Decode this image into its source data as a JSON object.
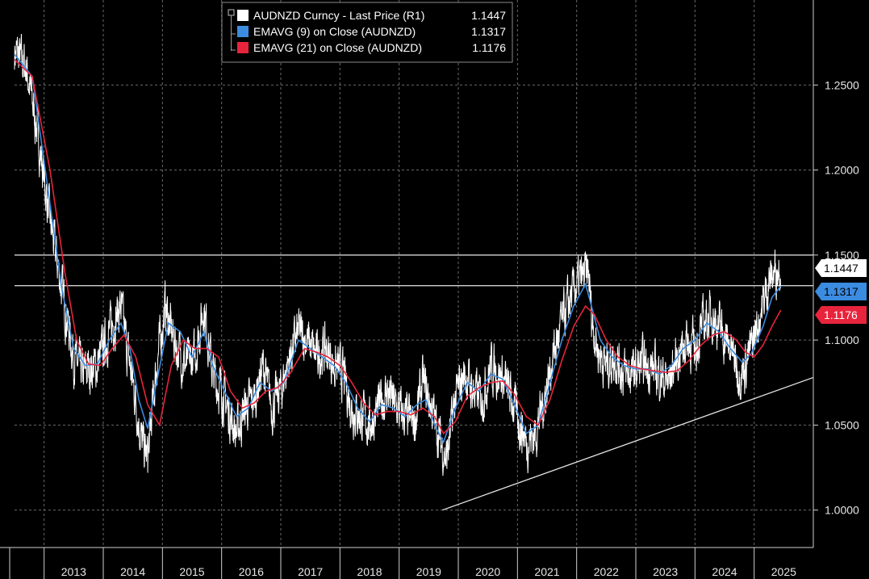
{
  "chart_data": {
    "type": "line",
    "legend": {
      "placement": "top-left",
      "entries": [
        {
          "label": "AUDNZD Curncy - Last Price (R1)",
          "value": "1.1447",
          "color": "#ffffff"
        },
        {
          "label": "EMAVG (9)  on Close (AUDNZD)",
          "value": "1.1317",
          "color": "#3b8be0"
        },
        {
          "label": "EMAVG (21)  on Close (AUDNZD)",
          "value": "1.1176",
          "color": "#e8243c"
        }
      ]
    },
    "x_labels": [
      "2013",
      "2014",
      "2015",
      "2016",
      "2017",
      "2018",
      "2019",
      "2020",
      "2021",
      "2022",
      "2023",
      "2024",
      "2025"
    ],
    "xlim": [
      2012.5,
      2026.0
    ],
    "y_ticks": [
      "1.0000",
      "1.0500",
      "1.1000",
      "1.1500",
      "1.2000",
      "1.2500"
    ],
    "y_tick_values": [
      1.0,
      1.05,
      1.1,
      1.15,
      1.2,
      1.25
    ],
    "ylim": [
      0.978,
      1.3
    ],
    "axis_side": "right",
    "grid": true,
    "background": "#000000",
    "badges": [
      {
        "text": "1.1447",
        "value": 1.1447,
        "bg": "#ffffff",
        "fg": "#000000"
      },
      {
        "text": "1.1317",
        "value": 1.1317,
        "bg": "#3b8be0",
        "fg": "#000000"
      },
      {
        "text": "1.1176",
        "value": 1.1176,
        "bg": "#e8243c",
        "fg": "#ffffff"
      }
    ],
    "horizontal_lines": [
      1.15,
      1.132
    ],
    "trendline": {
      "x": [
        2019.73,
        2026.0
      ],
      "y": [
        1.0,
        1.078
      ]
    },
    "price_anchors": {
      "x": [
        2012.5,
        2012.7,
        2012.9,
        2013.1,
        2013.3,
        2013.5,
        2013.65,
        2013.75,
        2013.9,
        2014.1,
        2014.3,
        2014.4,
        2014.55,
        2014.65,
        2014.75,
        2014.9,
        2015.05,
        2015.15,
        2015.25,
        2015.4,
        2015.55,
        2015.7,
        2015.85,
        2016.0,
        2016.15,
        2016.25,
        2016.4,
        2016.55,
        2016.7,
        2016.85,
        2017.0,
        2017.15,
        2017.3,
        2017.45,
        2017.6,
        2017.75,
        2017.9,
        2018.05,
        2018.2,
        2018.35,
        2018.5,
        2018.65,
        2018.8,
        2018.95,
        2019.1,
        2019.25,
        2019.4,
        2019.55,
        2019.7,
        2019.8,
        2019.95,
        2020.1,
        2020.25,
        2020.4,
        2020.55,
        2020.7,
        2020.85,
        2021.0,
        2021.15,
        2021.3,
        2021.45,
        2021.6,
        2021.75,
        2021.9,
        2022.05,
        2022.2,
        2022.25,
        2022.35,
        2022.5,
        2022.65,
        2022.8,
        2022.95,
        2023.1,
        2023.25,
        2023.4,
        2023.55,
        2023.7,
        2023.85,
        2024.0,
        2024.15,
        2024.3,
        2024.45,
        2024.6,
        2024.75,
        2024.85,
        2024.95,
        2025.1,
        2025.25,
        2025.35,
        2025.45
      ],
      "y": [
        1.27,
        1.26,
        1.22,
        1.17,
        1.13,
        1.09,
        1.08,
        1.083,
        1.085,
        1.105,
        1.12,
        1.095,
        1.065,
        1.04,
        1.03,
        1.085,
        1.12,
        1.105,
        1.095,
        1.085,
        1.09,
        1.12,
        1.08,
        1.07,
        1.055,
        1.045,
        1.06,
        1.065,
        1.085,
        1.06,
        1.07,
        1.09,
        1.105,
        1.1,
        1.09,
        1.095,
        1.085,
        1.08,
        1.06,
        1.055,
        1.05,
        1.06,
        1.07,
        1.06,
        1.055,
        1.05,
        1.075,
        1.06,
        1.04,
        1.03,
        1.065,
        1.08,
        1.07,
        1.065,
        1.085,
        1.08,
        1.07,
        1.055,
        1.04,
        1.045,
        1.065,
        1.09,
        1.11,
        1.125,
        1.135,
        1.14,
        1.115,
        1.095,
        1.085,
        1.09,
        1.08,
        1.08,
        1.085,
        1.085,
        1.08,
        1.075,
        1.09,
        1.1,
        1.095,
        1.11,
        1.115,
        1.105,
        1.095,
        1.08,
        1.085,
        1.095,
        1.115,
        1.135,
        1.14,
        1.1447
      ]
    },
    "ema9_anchors": {
      "x": [
        2012.5,
        2012.8,
        2013.1,
        2013.3,
        2013.5,
        2013.7,
        2013.9,
        2014.1,
        2014.3,
        2014.45,
        2014.6,
        2014.75,
        2014.9,
        2015.1,
        2015.3,
        2015.5,
        2015.7,
        2015.85,
        2016.05,
        2016.25,
        2016.45,
        2016.65,
        2016.85,
        2017.05,
        2017.3,
        2017.5,
        2017.7,
        2017.9,
        2018.1,
        2018.3,
        2018.5,
        2018.7,
        2018.9,
        2019.1,
        2019.3,
        2019.45,
        2019.6,
        2019.75,
        2019.95,
        2020.15,
        2020.35,
        2020.55,
        2020.75,
        2020.95,
        2021.15,
        2021.35,
        2021.55,
        2021.75,
        2021.95,
        2022.15,
        2022.25,
        2022.4,
        2022.6,
        2022.8,
        2023.0,
        2023.2,
        2023.4,
        2023.6,
        2023.8,
        2024.0,
        2024.2,
        2024.4,
        2024.6,
        2024.8,
        2024.95,
        2025.15,
        2025.3,
        2025.45
      ],
      "y": [
        1.268,
        1.255,
        1.18,
        1.13,
        1.095,
        1.085,
        1.086,
        1.1,
        1.11,
        1.095,
        1.065,
        1.048,
        1.075,
        1.11,
        1.105,
        1.09,
        1.105,
        1.085,
        1.07,
        1.055,
        1.06,
        1.075,
        1.07,
        1.075,
        1.1,
        1.095,
        1.09,
        1.085,
        1.075,
        1.06,
        1.052,
        1.062,
        1.06,
        1.055,
        1.062,
        1.065,
        1.05,
        1.04,
        1.06,
        1.075,
        1.07,
        1.08,
        1.077,
        1.062,
        1.045,
        1.05,
        1.075,
        1.1,
        1.12,
        1.133,
        1.12,
        1.1,
        1.09,
        1.085,
        1.083,
        1.083,
        1.08,
        1.085,
        1.095,
        1.1,
        1.11,
        1.105,
        1.095,
        1.087,
        1.092,
        1.108,
        1.125,
        1.1317
      ]
    },
    "ema21_anchors": {
      "x": [
        2012.5,
        2012.8,
        2013.1,
        2013.35,
        2013.55,
        2013.75,
        2013.95,
        2014.15,
        2014.35,
        2014.55,
        2014.75,
        2014.95,
        2015.15,
        2015.35,
        2015.55,
        2015.75,
        2015.95,
        2016.15,
        2016.35,
        2016.55,
        2016.75,
        2016.95,
        2017.15,
        2017.4,
        2017.6,
        2017.8,
        2018.0,
        2018.2,
        2018.4,
        2018.6,
        2018.8,
        2019.0,
        2019.2,
        2019.4,
        2019.6,
        2019.75,
        2019.95,
        2020.15,
        2020.35,
        2020.55,
        2020.75,
        2020.95,
        2021.15,
        2021.35,
        2021.55,
        2021.75,
        2021.95,
        2022.15,
        2022.3,
        2022.5,
        2022.7,
        2022.9,
        2023.1,
        2023.3,
        2023.5,
        2023.7,
        2023.9,
        2024.1,
        2024.3,
        2024.5,
        2024.7,
        2024.85,
        2025.0,
        2025.15,
        2025.3,
        2025.45
      ],
      "y": [
        1.265,
        1.255,
        1.2,
        1.14,
        1.1,
        1.086,
        1.085,
        1.095,
        1.103,
        1.09,
        1.062,
        1.05,
        1.085,
        1.1,
        1.095,
        1.095,
        1.09,
        1.07,
        1.06,
        1.063,
        1.07,
        1.072,
        1.08,
        1.095,
        1.093,
        1.09,
        1.085,
        1.075,
        1.063,
        1.056,
        1.058,
        1.058,
        1.056,
        1.06,
        1.055,
        1.045,
        1.052,
        1.067,
        1.072,
        1.075,
        1.076,
        1.068,
        1.055,
        1.05,
        1.065,
        1.088,
        1.108,
        1.12,
        1.115,
        1.1,
        1.09,
        1.085,
        1.083,
        1.082,
        1.081,
        1.082,
        1.088,
        1.097,
        1.103,
        1.105,
        1.1,
        1.093,
        1.09,
        1.097,
        1.108,
        1.1176
      ]
    }
  }
}
